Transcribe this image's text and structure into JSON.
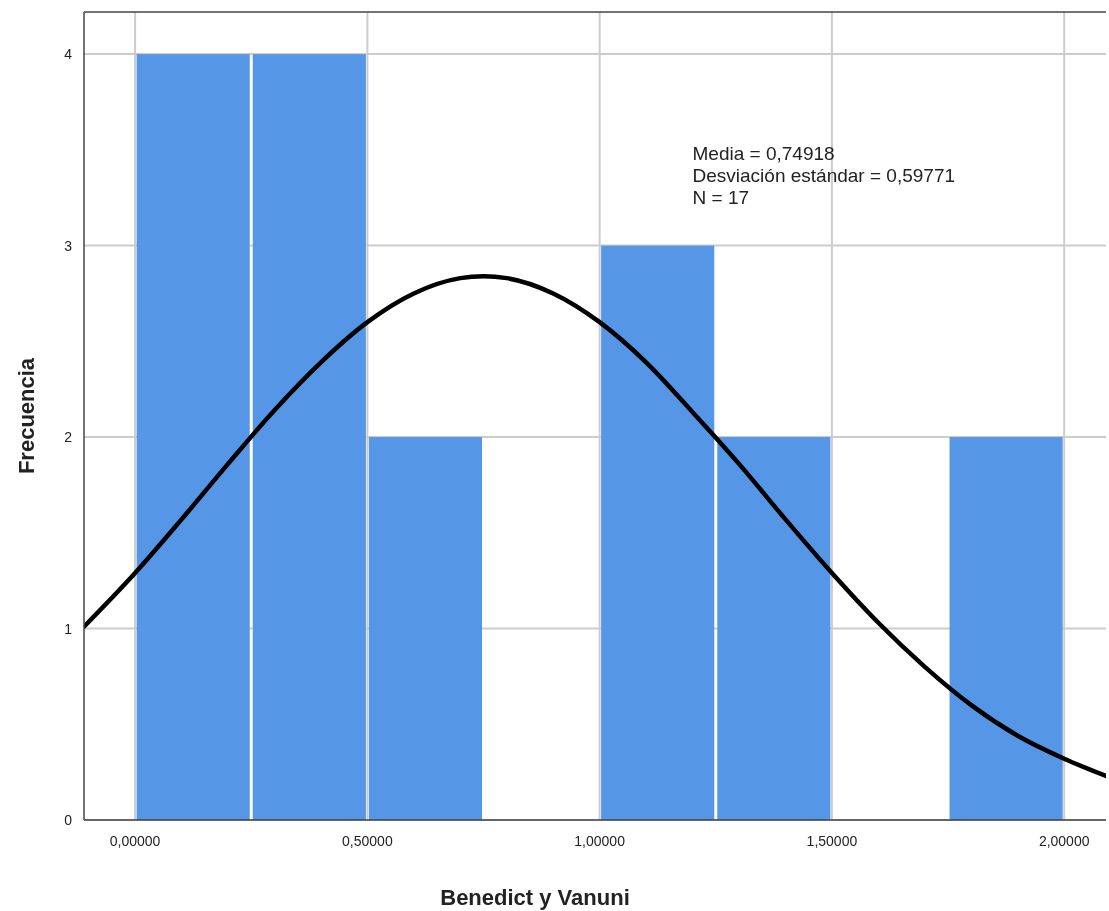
{
  "chart_data": {
    "type": "histogram",
    "xlabel": "Benedict y Vanuni",
    "ylabel": "Frecuencia",
    "bins": [
      0,
      0.25,
      0.5,
      0.75,
      1,
      1.25,
      1.5,
      1.75,
      2
    ],
    "values": [
      4,
      4,
      2,
      0,
      3,
      2,
      0,
      2
    ],
    "color": "#5596e6",
    "series": [
      {
        "type": "line",
        "color": "#000000",
        "x": [
          -0.11,
          0,
          0.1,
          0.2,
          0.3,
          0.4,
          0.5,
          0.6,
          0.7,
          0.75,
          0.8,
          0.9,
          1,
          1.1,
          1.2,
          1.3,
          1.4,
          1.5,
          1.6,
          1.7,
          1.8,
          1.9,
          2,
          2.09
        ],
        "values": [
          1.01,
          1.29,
          1.57,
          1.86,
          2.14,
          2.39,
          2.6,
          2.75,
          2.83,
          2.84,
          2.83,
          2.75,
          2.6,
          2.39,
          2.13,
          1.86,
          1.57,
          1.29,
          1.03,
          0.8,
          0.6,
          0.44,
          0.32,
          0.23
        ]
      }
    ],
    "xlim": [
      -0.11,
      2.09
    ],
    "ylim": [
      0,
      4.22
    ],
    "xticks": [
      {
        "value": 0,
        "label": "0,00000"
      },
      {
        "value": 0.5,
        "label": "0,50000"
      },
      {
        "value": 1,
        "label": "1,00000"
      },
      {
        "value": 1.5,
        "label": "1,50000"
      },
      {
        "value": 2,
        "label": "2,00000"
      }
    ],
    "yticks": [
      0,
      1,
      2,
      3,
      4
    ],
    "grid": true,
    "annotations": [
      "Media = 0,74918",
      "Desviación estándar = 0,59771",
      "N = 17"
    ]
  }
}
